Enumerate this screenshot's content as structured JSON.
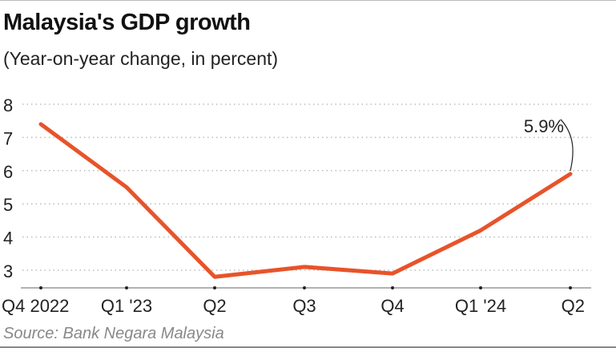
{
  "title": "Malaysia's GDP growth",
  "subtitle": "(Year-on-year change, in percent)",
  "source": "Source: Bank Negara Malaysia",
  "chart_data": {
    "type": "line",
    "title": "Malaysia's GDP growth",
    "subtitle": "(Year-on-year change, in percent)",
    "categories": [
      "Q4 2022",
      "Q1 '23",
      "Q2",
      "Q3",
      "Q4",
      "Q1 '24",
      "Q2"
    ],
    "values": [
      7.4,
      5.5,
      2.8,
      3.1,
      2.9,
      4.2,
      5.9
    ],
    "y_ticks": [
      3,
      4,
      5,
      6,
      7,
      8
    ],
    "ylim": [
      2.45,
      8
    ],
    "grid": "horizontal dotted",
    "line_color": "#e8532a",
    "annotation": {
      "label": "5.9%",
      "category_index": 6
    }
  }
}
